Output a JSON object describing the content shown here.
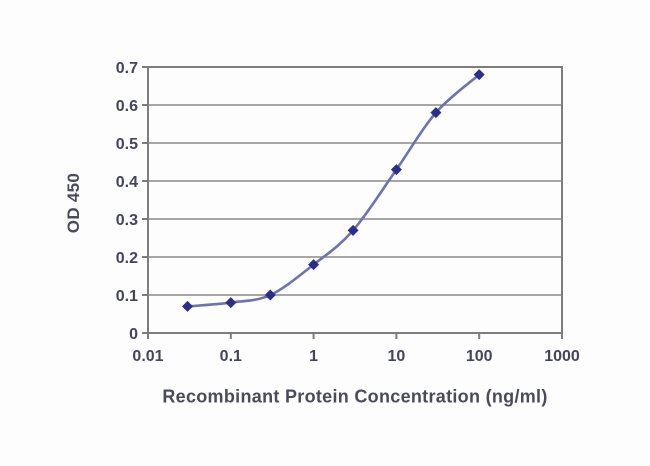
{
  "chart_data": {
    "type": "line",
    "title": "",
    "xlabel": "Recombinant Protein Concentration (ng/ml)",
    "ylabel": "OD 450",
    "x_scale": "log",
    "xlim": [
      0.01,
      1000
    ],
    "ylim": [
      0,
      0.7
    ],
    "x": [
      0.03,
      0.1,
      0.3,
      1,
      3,
      10,
      30,
      100
    ],
    "y": [
      0.07,
      0.08,
      0.1,
      0.18,
      0.27,
      0.43,
      0.58,
      0.68
    ],
    "xticks": [
      "0.01",
      "0.1",
      "1",
      "10",
      "100",
      "1000"
    ],
    "xtick_values": [
      0.01,
      0.1,
      1,
      10,
      100,
      1000
    ],
    "yticks": [
      "0",
      "0.1",
      "0.2",
      "0.3",
      "0.4",
      "0.5",
      "0.6",
      "0.7"
    ],
    "ytick_values": [
      0,
      0.1,
      0.2,
      0.3,
      0.4,
      0.5,
      0.6,
      0.7
    ],
    "grid": "horizontal",
    "legend": false,
    "marker_shape": "diamond",
    "colors": {
      "line": "#6e72b0",
      "marker": "#2b2e8c",
      "grid": "#8a8a8a",
      "frame": "#7d7d7d",
      "text": "#44455a",
      "background": "#fdfdfd"
    }
  }
}
